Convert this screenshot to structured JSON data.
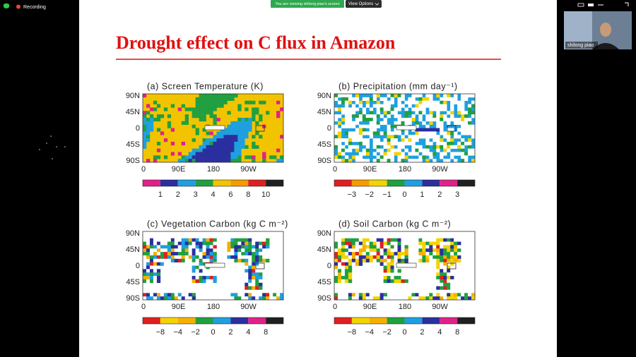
{
  "zoom": {
    "recording": "Recording",
    "banner": "You are viewing shilong piao's screen",
    "view_options": "View Options",
    "participant": "shilong piao"
  },
  "slide": {
    "title": "Drought effect on C flux in Amazon",
    "panels": [
      {
        "title": "(a)  Screen Temperature (K)",
        "lat_labels": [
          "90N",
          "45N",
          "0",
          "45S",
          "90S"
        ],
        "lon_labels": [
          "0",
          "90E",
          "180",
          "90W"
        ],
        "colorbar_labels": [
          "1",
          "2",
          "3",
          "4",
          "6",
          "8",
          "10"
        ]
      },
      {
        "title": "(b)  Precipitation (mm day⁻¹)",
        "lat_labels": [
          "90N",
          "45N",
          "0",
          "45S",
          "90S"
        ],
        "lon_labels": [
          "0",
          "90E",
          "180",
          "90W"
        ],
        "colorbar_labels": [
          "−3",
          "−2",
          "−1",
          "0",
          "1",
          "2",
          "3"
        ]
      },
      {
        "title": "(c)  Vegetation Carbon (kg C m⁻²)",
        "lat_labels": [
          "90N",
          "45N",
          "0",
          "45S",
          "90S"
        ],
        "lon_labels": [
          "0",
          "90E",
          "180",
          "90W"
        ],
        "colorbar_labels": [
          "−8",
          "−4",
          "−2",
          "0",
          "2",
          "4",
          "8"
        ]
      },
      {
        "title": "(d)  Soil Carbon (kg C m⁻²)",
        "lat_labels": [
          "90N",
          "45N",
          "0",
          "45S",
          "90S"
        ],
        "lon_labels": [
          "0",
          "90E",
          "180",
          "90W"
        ],
        "colorbar_labels": [
          "−8",
          "−4",
          "−2",
          "0",
          "2",
          "4",
          "8"
        ]
      }
    ]
  }
}
